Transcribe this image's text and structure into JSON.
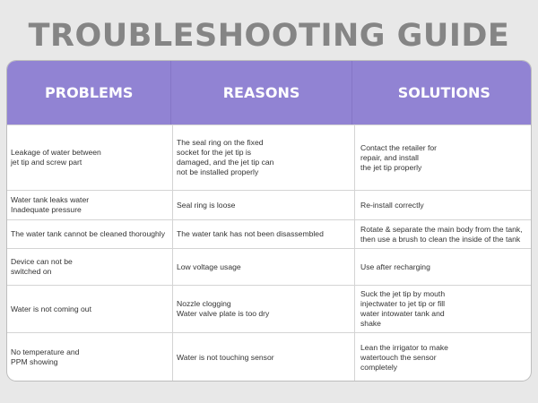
{
  "title": "TROUBLESHOOTING GUIDE",
  "colors": {
    "header": "#9183d3",
    "title": "#858585",
    "background": "#e8e8e8"
  },
  "headers": [
    "PROBLEMS",
    "REASONS",
    "SOLUTIONS"
  ],
  "rows": [
    {
      "problem": "Leakage of water between\njet tip and screw part",
      "reason": "The seal ring on the fixed\nsocket for the jet tip is\ndamaged, and the jet tip can\nnot be installed properly",
      "solution": "Contact the retailer for\nrepair, and install\nthe jet tip properly"
    },
    {
      "problem": "Water tank leaks water\nInadequate pressure",
      "reason": "Seal ring is loose",
      "solution": "Re-install correctly"
    },
    {
      "problem": "The water tank cannot be cleaned thoroughly",
      "reason": "The water tank has not been disassembled",
      "solution": "Rotate & separate the main body from the tank,\nthen use a brush to clean the inside of the tank"
    },
    {
      "problem": "Device can not be\nswitched on",
      "reason": "Low voltage usage",
      "solution": "Use after recharging"
    },
    {
      "problem": "Water is not coming out",
      "reason": "Nozzle clogging\nWater valve plate is too dry",
      "solution": "Suck the jet tip by mouth\ninjectwater to jet tip or fill\nwater intowater tank and\nshake"
    },
    {
      "problem": "No temperature and\nPPM showing",
      "reason": "Water is not touching sensor",
      "solution": "Lean the irrigator to make\nwatertouch the sensor\ncompletely"
    }
  ]
}
